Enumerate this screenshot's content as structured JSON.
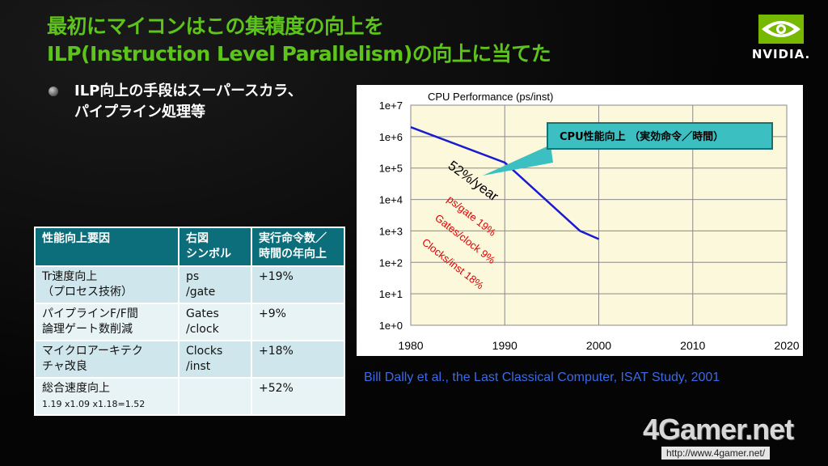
{
  "slide": {
    "title_line1": "最初にマイコンはこの集積度の向上を",
    "title_line2": "ILP(Instruction Level Parallelism)の向上に当てた",
    "logo_text": "NVIDIA.",
    "bullet_line1": "ILP向上の手段はスーパースカラ、",
    "bullet_line2": "パイプライン処理等",
    "citation": "Bill Dally et al., the Last Classical Computer, ISAT Study, 2001",
    "watermark": "4Gamer.net",
    "watermark_url": "http://www.4gamer.net/",
    "colors": {
      "title": "#5cc41a",
      "table_header": "#0c6e7a",
      "citation": "#3a6ae8"
    }
  },
  "table": {
    "headers": [
      [
        "性能向上要因"
      ],
      [
        "右図",
        "シンボル"
      ],
      [
        "実行命令数／",
        "時間の年向上"
      ]
    ],
    "rows": [
      {
        "factor": [
          "Tr速度向上",
          "（プロセス技術）"
        ],
        "symbol": [
          "ps",
          "/gate"
        ],
        "rate": "+19%"
      },
      {
        "factor": [
          "パイプラインF/F間",
          "論理ゲート数削減"
        ],
        "symbol": [
          "Gates",
          "/clock"
        ],
        "rate": "+9%"
      },
      {
        "factor": [
          "マイクロアーキテク",
          "チャ改良"
        ],
        "symbol": [
          "Clocks",
          "/inst"
        ],
        "rate": "+18%"
      },
      {
        "factor": [
          "総合速度向上"
        ],
        "factor_sub": "1.19 x1.09 x1.18=1.52",
        "symbol": [],
        "rate": "+52%"
      }
    ]
  },
  "chart_data": {
    "type": "line",
    "title": "CPU Performance (ps/inst)",
    "xlabel": "",
    "ylabel": "",
    "x_ticks": [
      "1980",
      "1990",
      "2000",
      "2010",
      "2020"
    ],
    "y_ticks": [
      "1e+0",
      "1e+1",
      "1e+2",
      "1e+3",
      "1e+4",
      "1e+5",
      "1e+6",
      "1e+7"
    ],
    "xlim": [
      1980,
      2020
    ],
    "ylim": [
      1,
      10000000
    ],
    "yscale": "log",
    "grid": true,
    "plot_background": "#fbf8dc",
    "series": [
      {
        "color": "#1a1ad0",
        "points": [
          [
            1980,
            2000000
          ],
          [
            1990,
            150000
          ],
          [
            1998,
            1000
          ],
          [
            2000,
            550
          ]
        ]
      }
    ],
    "callout": "CPU性能向上 （実効命令／時間）",
    "callout_colors": {
      "fill": "#3bbfc0",
      "border": "#1a6f70"
    },
    "annotations": [
      {
        "text": "52%/year",
        "color": "#000000"
      },
      {
        "text": "ps/gate 19%",
        "color": "#e00000"
      },
      {
        "text": "Gates/clock 9%",
        "color": "#e00000"
      },
      {
        "text": "Clocks/inst 18%",
        "color": "#e00000"
      }
    ]
  }
}
